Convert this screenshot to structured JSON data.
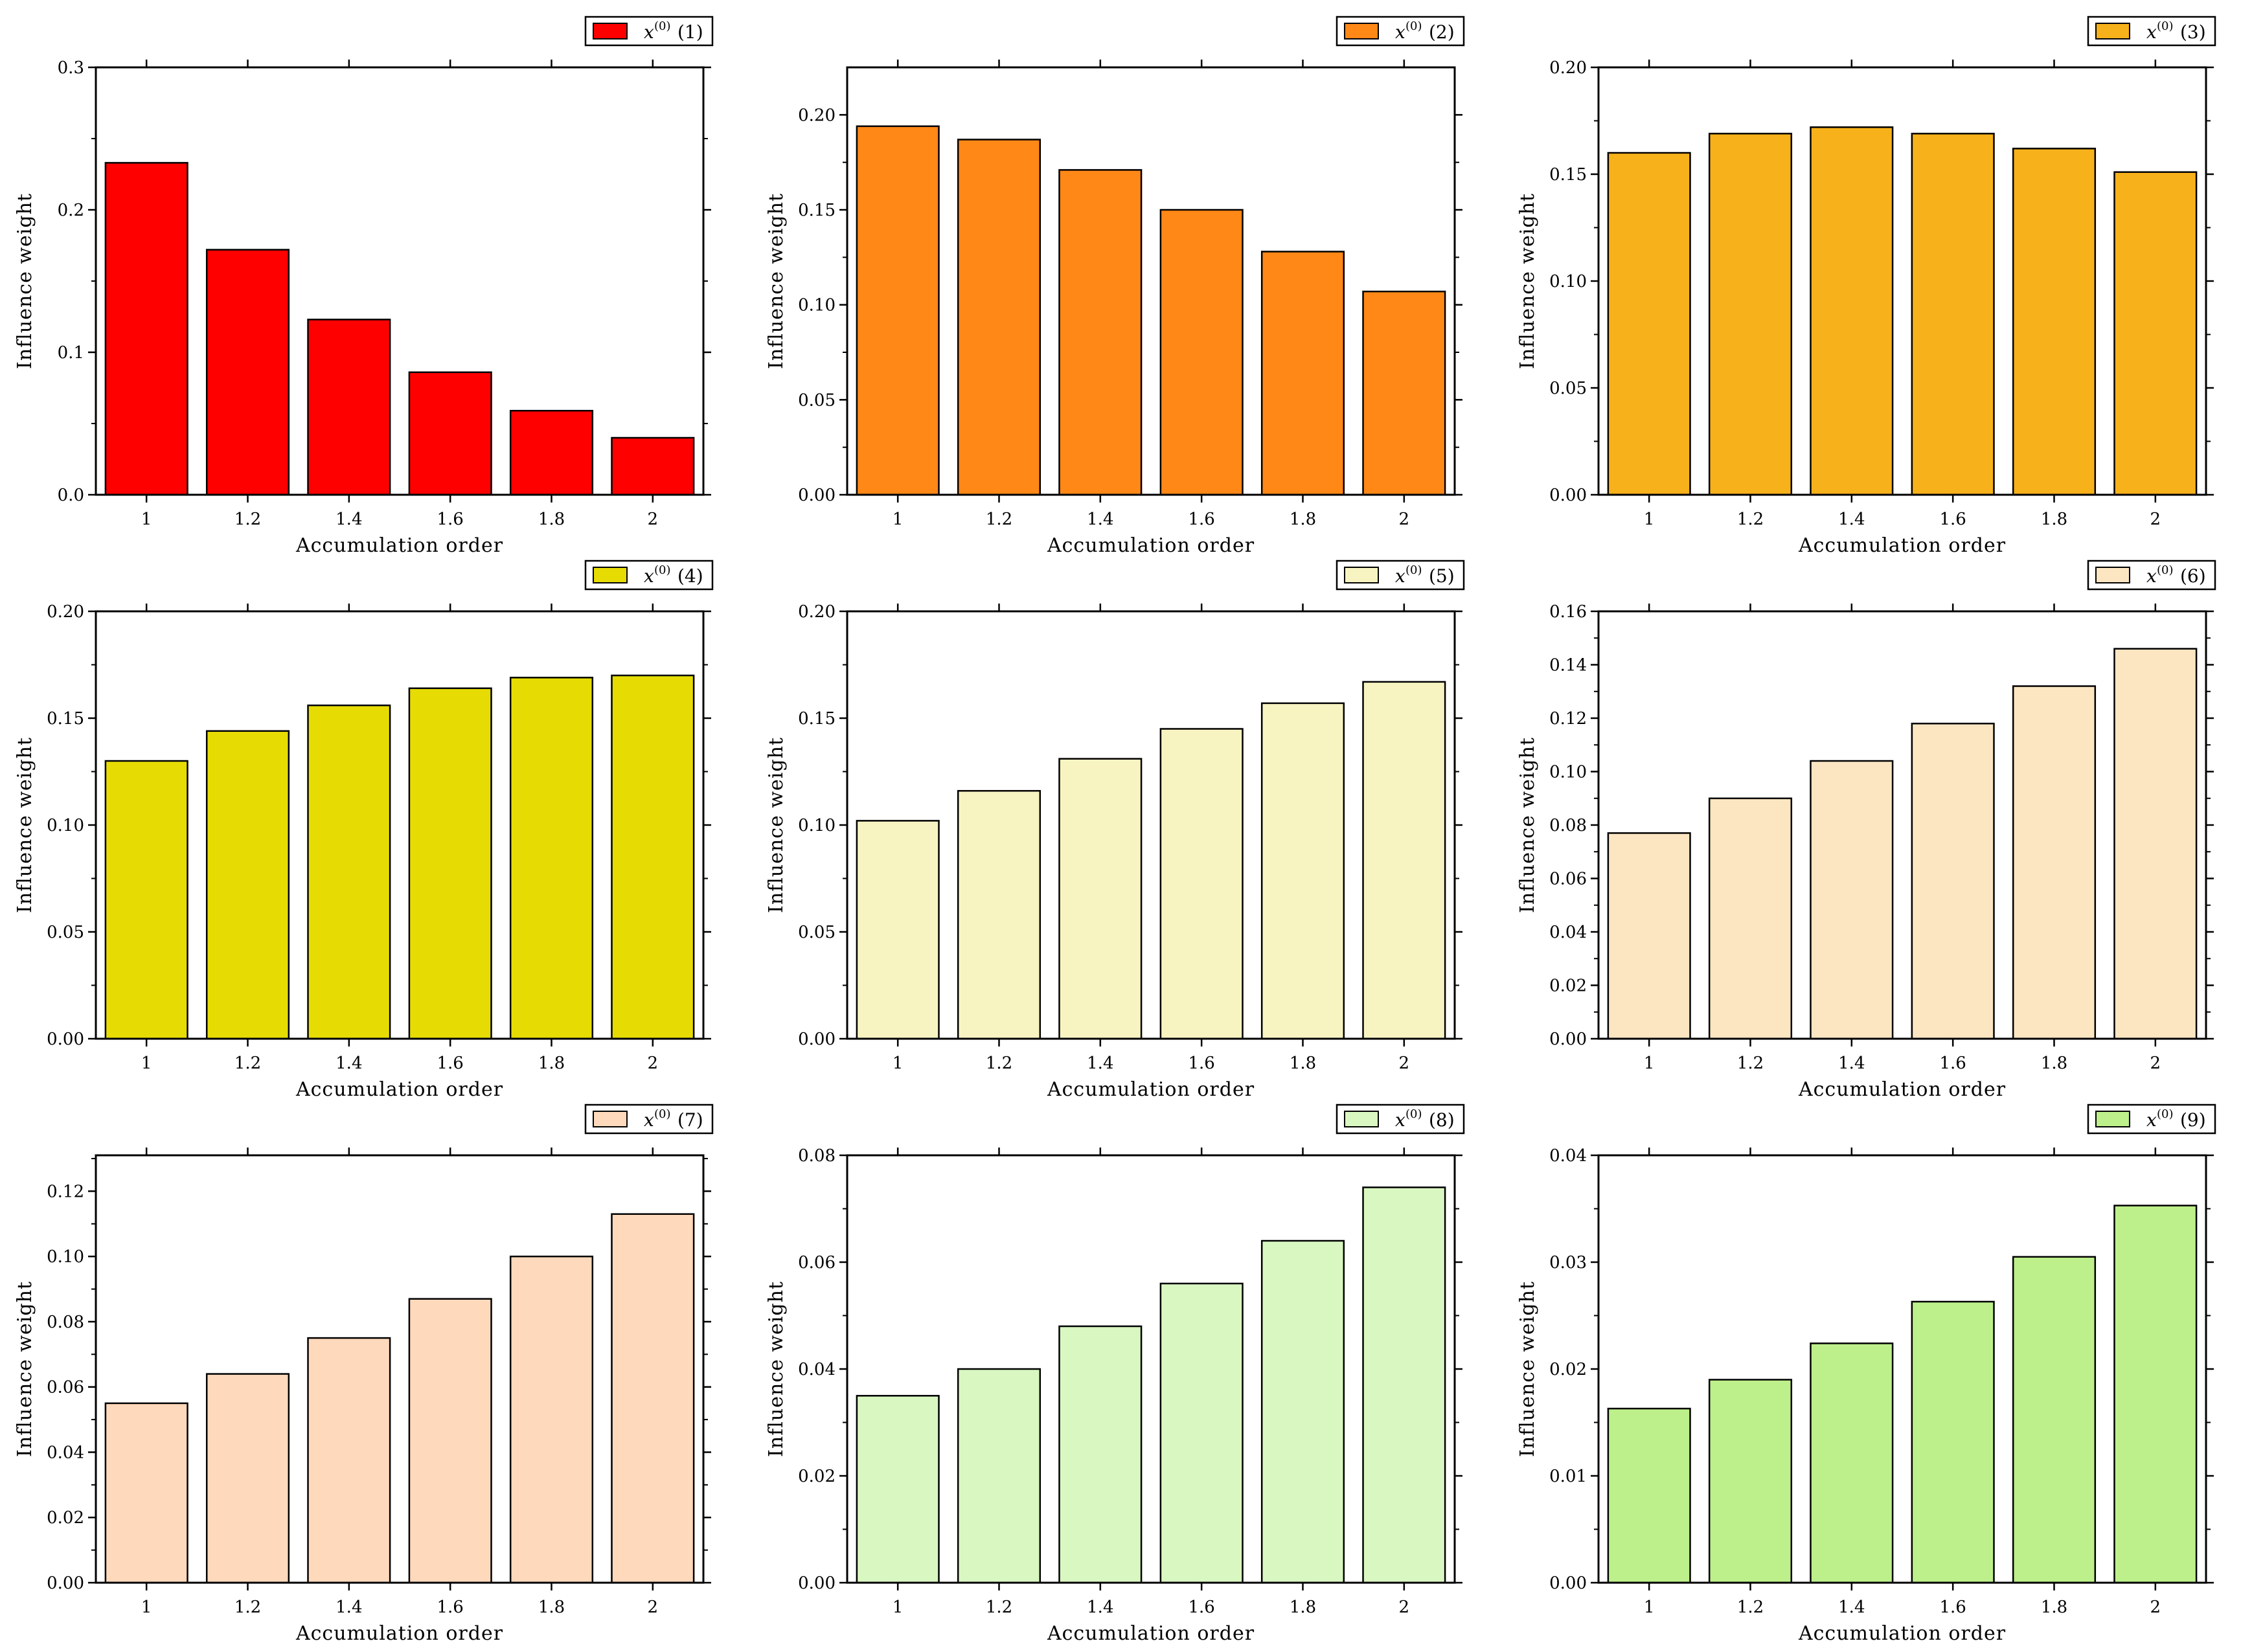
{
  "chart_data": [
    {
      "type": "bar",
      "legend": {
        "base": "x",
        "sup": "(0)",
        "label": "(1)"
      },
      "color": "#FF0000",
      "categories": [
        "1",
        "1.2",
        "1.4",
        "1.6",
        "1.8",
        "2"
      ],
      "values": [
        0.233,
        0.172,
        0.123,
        0.086,
        0.059,
        0.04
      ],
      "yticks": [
        "0.0",
        "0.1",
        "0.2",
        "0.3"
      ],
      "ylim": [
        0,
        0.3
      ],
      "xlabel": "Accumulation order",
      "ylabel": "Influence weight"
    },
    {
      "type": "bar",
      "legend": {
        "base": "x",
        "sup": "(0)",
        "label": "(2)"
      },
      "color": "#FF8817",
      "categories": [
        "1",
        "1.2",
        "1.4",
        "1.6",
        "1.8",
        "2"
      ],
      "values": [
        0.194,
        0.187,
        0.171,
        0.15,
        0.128,
        0.107
      ],
      "yticks": [
        "0.00",
        "0.05",
        "0.10",
        "0.15",
        "0.20"
      ],
      "ylim": [
        0,
        0.225
      ],
      "xlabel": "Accumulation order",
      "ylabel": "Influence weight"
    },
    {
      "type": "bar",
      "legend": {
        "base": "x",
        "sup": "(0)",
        "label": "(3)"
      },
      "color": "#F7B11A",
      "categories": [
        "1",
        "1.2",
        "1.4",
        "1.6",
        "1.8",
        "2"
      ],
      "values": [
        0.16,
        0.169,
        0.172,
        0.169,
        0.162,
        0.151
      ],
      "yticks": [
        "0.00",
        "0.05",
        "0.10",
        "0.15",
        "0.20"
      ],
      "ylim": [
        0,
        0.2
      ],
      "xlabel": "Accumulation order",
      "ylabel": "Influence weight"
    },
    {
      "type": "bar",
      "legend": {
        "base": "x",
        "sup": "(0)",
        "label": "(4)"
      },
      "color": "#E6DC04",
      "categories": [
        "1",
        "1.2",
        "1.4",
        "1.6",
        "1.8",
        "2"
      ],
      "values": [
        0.13,
        0.144,
        0.156,
        0.164,
        0.169,
        0.17
      ],
      "yticks": [
        "0.00",
        "0.05",
        "0.10",
        "0.15",
        "0.20"
      ],
      "ylim": [
        0,
        0.2
      ],
      "xlabel": "Accumulation order",
      "ylabel": "Influence weight"
    },
    {
      "type": "bar",
      "legend": {
        "base": "x",
        "sup": "(0)",
        "label": "(5)"
      },
      "color": "#F8F4C2",
      "categories": [
        "1",
        "1.2",
        "1.4",
        "1.6",
        "1.8",
        "2"
      ],
      "values": [
        0.102,
        0.116,
        0.131,
        0.145,
        0.157,
        0.167
      ],
      "yticks": [
        "0.00",
        "0.05",
        "0.10",
        "0.15",
        "0.20"
      ],
      "ylim": [
        0,
        0.2
      ],
      "xlabel": "Accumulation order",
      "ylabel": "Influence weight"
    },
    {
      "type": "bar",
      "legend": {
        "base": "x",
        "sup": "(0)",
        "label": "(6)"
      },
      "color": "#FCE6C2",
      "categories": [
        "1",
        "1.2",
        "1.4",
        "1.6",
        "1.8",
        "2"
      ],
      "values": [
        0.077,
        0.09,
        0.104,
        0.118,
        0.132,
        0.146
      ],
      "yticks": [
        "0.00",
        "0.02",
        "0.04",
        "0.06",
        "0.08",
        "0.10",
        "0.12",
        "0.14",
        "0.16"
      ],
      "ylim": [
        0,
        0.16
      ],
      "xlabel": "Accumulation order",
      "ylabel": "Influence weight"
    },
    {
      "type": "bar",
      "legend": {
        "base": "x",
        "sup": "(0)",
        "label": "(7)"
      },
      "color": "#FFD9BC",
      "categories": [
        "1",
        "1.2",
        "1.4",
        "1.6",
        "1.8",
        "2"
      ],
      "values": [
        0.055,
        0.064,
        0.075,
        0.087,
        0.1,
        0.113
      ],
      "yticks": [
        "0.00",
        "0.02",
        "0.04",
        "0.06",
        "0.08",
        "0.10",
        "0.12"
      ],
      "ylim": [
        0,
        0.131
      ],
      "xlabel": "Accumulation order",
      "ylabel": "Influence weight"
    },
    {
      "type": "bar",
      "legend": {
        "base": "x",
        "sup": "(0)",
        "label": "(8)"
      },
      "color": "#D9F7C1",
      "categories": [
        "1",
        "1.2",
        "1.4",
        "1.6",
        "1.8",
        "2"
      ],
      "values": [
        0.035,
        0.04,
        0.048,
        0.056,
        0.064,
        0.074
      ],
      "yticks": [
        "0.00",
        "0.02",
        "0.04",
        "0.06",
        "0.08"
      ],
      "ylim": [
        0,
        0.08
      ],
      "xlabel": "Accumulation order",
      "ylabel": "Influence weight"
    },
    {
      "type": "bar",
      "legend": {
        "base": "x",
        "sup": "(0)",
        "label": "(9)"
      },
      "color": "#BDF08B",
      "categories": [
        "1",
        "1.2",
        "1.4",
        "1.6",
        "1.8",
        "2"
      ],
      "values": [
        0.0163,
        0.019,
        0.0224,
        0.0263,
        0.0305,
        0.0353
      ],
      "yticks": [
        "0.00",
        "0.01",
        "0.02",
        "0.03",
        "0.04"
      ],
      "ylim": [
        0,
        0.04
      ],
      "xlabel": "Accumulation order",
      "ylabel": "Influence weight"
    }
  ]
}
